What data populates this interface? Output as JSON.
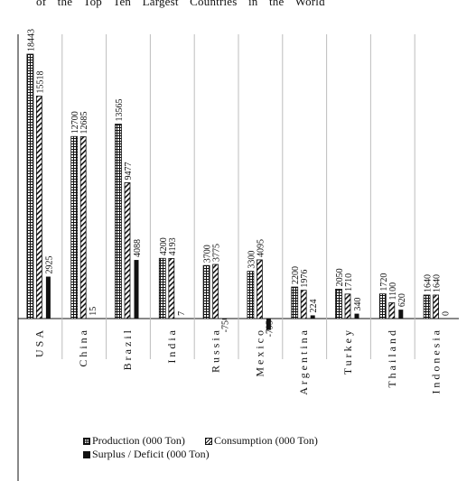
{
  "title_fragment": "of the Top Ten Largest Countries in the World",
  "chart_data": {
    "type": "bar",
    "categories": [
      "USA",
      "China",
      "Brazil",
      "India",
      "Russia",
      "Mexico",
      "Argentina",
      "Turkey",
      "Thailand",
      "Indonesia"
    ],
    "series": [
      {
        "name": "Production (000 Ton)",
        "values": [
          18443,
          12700,
          13565,
          4200,
          3700,
          3300,
          2200,
          2050,
          1720,
          1640
        ],
        "labels": [
          "18443",
          "12700",
          "13565",
          "4200",
          "3700",
          "3300",
          "2200",
          "2050",
          "1720",
          "1640"
        ]
      },
      {
        "name": "Consumption (000 Ton)",
        "values": [
          15518,
          12685,
          9477,
          4193,
          3775,
          4095,
          1976,
          1710,
          1100,
          1640
        ],
        "labels": [
          "15518",
          "12685",
          "9477",
          "4193",
          "3775",
          "4095",
          "1976",
          "1710",
          "1100",
          "1640"
        ]
      },
      {
        "name": "Surplus / Deficit (000 Ton)",
        "values": [
          2925,
          15,
          4088,
          7,
          -75,
          -795,
          224,
          340,
          620,
          0
        ],
        "labels": [
          "2925",
          "15",
          "4088",
          "7",
          "-75",
          "-795",
          "224",
          "340",
          "620",
          "0"
        ]
      }
    ],
    "legend_position": "bottom",
    "grid": false
  },
  "colors": {
    "ink": "#111111",
    "background": "#ffffff"
  }
}
